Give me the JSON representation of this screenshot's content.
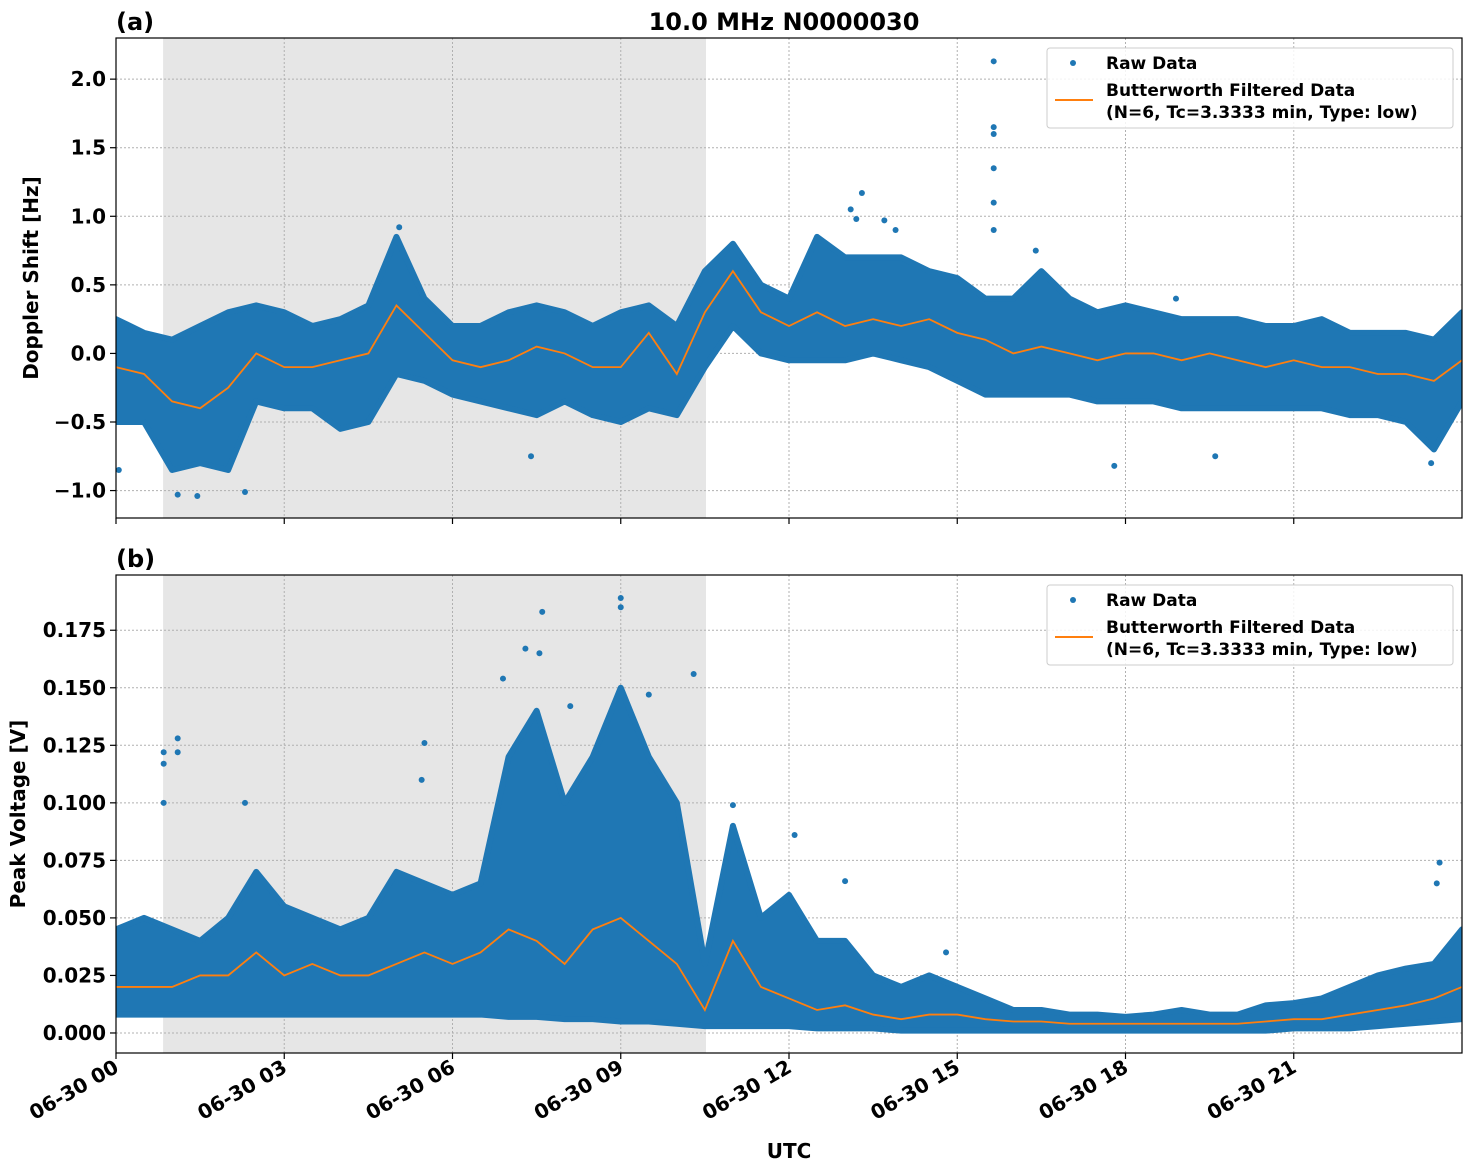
{
  "figure_title": "10.0 MHz N0000030",
  "xlabel": "UTC",
  "shaded_interval_hours": [
    0.84,
    10.52
  ],
  "colors": {
    "raw": "#1f77b4",
    "filtered": "#ff7f0e",
    "shade": "#e6e6e6",
    "grid": "#b0b0b0"
  },
  "chart_data": [
    {
      "type": "scatter",
      "panel_label": "(a)",
      "title": "10.0 MHz N0000030",
      "ylabel": "Doppler Shift [Hz]",
      "xlabel": "",
      "xlim": [
        0,
        24
      ],
      "ylim": [
        -1.2,
        2.3
      ],
      "yticks": [
        -1.0,
        -0.5,
        0.0,
        0.5,
        1.0,
        1.5,
        2.0
      ],
      "ytick_labels": [
        "−1.0",
        "−0.5",
        "0.0",
        "0.5",
        "1.0",
        "1.5",
        "2.0"
      ],
      "grid": true,
      "legend": {
        "placement": "top-right",
        "entries": [
          "Raw Data",
          "Butterworth Filtered Data",
          "(N=6, Tc=3.3333 min, Type: low)"
        ]
      },
      "x_hours": [
        0,
        0.5,
        1,
        1.5,
        2,
        2.5,
        3,
        3.5,
        4,
        4.5,
        5,
        5.5,
        6,
        6.5,
        7,
        7.5,
        8,
        8.5,
        9,
        9.5,
        10,
        10.5,
        11,
        11.5,
        12,
        12.5,
        13,
        13.5,
        14,
        14.5,
        15,
        15.5,
        16,
        16.5,
        17,
        17.5,
        18,
        18.5,
        19,
        19.5,
        20,
        20.5,
        21,
        21.5,
        22,
        22.5,
        23,
        23.5,
        24
      ],
      "series": [
        {
          "name": "Butterworth Filtered Data",
          "kind": "line",
          "values": [
            -0.1,
            -0.15,
            -0.35,
            -0.4,
            -0.25,
            0.0,
            -0.1,
            -0.1,
            -0.05,
            0.0,
            0.35,
            0.15,
            -0.05,
            -0.1,
            -0.05,
            0.05,
            0.0,
            -0.1,
            -0.1,
            0.15,
            -0.15,
            0.3,
            0.6,
            0.3,
            0.2,
            0.3,
            0.2,
            0.25,
            0.2,
            0.25,
            0.15,
            0.1,
            0.0,
            0.05,
            0.0,
            -0.05,
            0.0,
            0.0,
            -0.05,
            0.0,
            -0.05,
            -0.1,
            -0.05,
            -0.1,
            -0.1,
            -0.15,
            -0.15,
            -0.2,
            -0.05
          ]
        },
        {
          "name": "Raw Data",
          "kind": "scatter-envelope",
          "upper": [
            0.25,
            0.15,
            0.1,
            0.2,
            0.3,
            0.35,
            0.3,
            0.2,
            0.25,
            0.35,
            0.85,
            0.4,
            0.2,
            0.2,
            0.3,
            0.35,
            0.3,
            0.2,
            0.3,
            0.35,
            0.2,
            0.6,
            0.8,
            0.5,
            0.4,
            0.85,
            0.7,
            0.7,
            0.7,
            0.6,
            0.55,
            0.4,
            0.4,
            0.6,
            0.4,
            0.3,
            0.35,
            0.3,
            0.25,
            0.25,
            0.25,
            0.2,
            0.2,
            0.25,
            0.15,
            0.15,
            0.15,
            0.1,
            0.3
          ],
          "lower": [
            -0.5,
            -0.5,
            -0.85,
            -0.8,
            -0.85,
            -0.35,
            -0.4,
            -0.4,
            -0.55,
            -0.5,
            -0.15,
            -0.2,
            -0.3,
            -0.35,
            -0.4,
            -0.45,
            -0.35,
            -0.45,
            -0.5,
            -0.4,
            -0.45,
            -0.1,
            0.2,
            0.0,
            -0.05,
            -0.05,
            -0.05,
            0.0,
            -0.05,
            -0.1,
            -0.2,
            -0.3,
            -0.3,
            -0.3,
            -0.3,
            -0.35,
            -0.35,
            -0.35,
            -0.4,
            -0.4,
            -0.4,
            -0.4,
            -0.4,
            -0.4,
            -0.45,
            -0.45,
            -0.5,
            -0.7,
            -0.35
          ],
          "outliers": [
            [
              15.65,
              2.13
            ],
            [
              15.65,
              1.65
            ],
            [
              15.65,
              1.6
            ],
            [
              15.65,
              1.35
            ],
            [
              15.65,
              1.1
            ],
            [
              15.65,
              0.9
            ],
            [
              13.3,
              1.17
            ],
            [
              13.1,
              1.05
            ],
            [
              13.2,
              0.98
            ],
            [
              13.7,
              0.97
            ],
            [
              13.9,
              0.9
            ],
            [
              5.05,
              0.92
            ],
            [
              17.8,
              -0.82
            ],
            [
              1.1,
              -1.03
            ],
            [
              1.45,
              -1.04
            ],
            [
              2.3,
              -1.01
            ],
            [
              0.05,
              -0.85
            ],
            [
              19.6,
              -0.75
            ],
            [
              23.45,
              -0.8
            ],
            [
              16.4,
              0.75
            ],
            [
              18.9,
              0.4
            ],
            [
              7.4,
              -0.75
            ]
          ]
        }
      ]
    },
    {
      "type": "scatter",
      "panel_label": "(b)",
      "title": "",
      "ylabel": "Peak Voltage [V]",
      "xlabel": "UTC",
      "xlim": [
        0,
        24
      ],
      "ylim": [
        -0.0087,
        0.199
      ],
      "yticks": [
        0.0,
        0.025,
        0.05,
        0.075,
        0.1,
        0.125,
        0.15,
        0.175
      ],
      "ytick_labels": [
        "0.000",
        "0.025",
        "0.050",
        "0.075",
        "0.100",
        "0.125",
        "0.150",
        "0.175"
      ],
      "xticks": [
        0,
        3,
        6,
        9,
        12,
        15,
        18,
        21
      ],
      "xtick_labels": [
        "06-30 00",
        "06-30 03",
        "06-30 06",
        "06-30 09",
        "06-30 12",
        "06-30 15",
        "06-30 18",
        "06-30 21"
      ],
      "grid": true,
      "legend": {
        "placement": "top-right",
        "entries": [
          "Raw Data",
          "Butterworth Filtered Data",
          "(N=6, Tc=3.3333 min, Type: low)"
        ]
      },
      "x_hours": [
        0,
        0.5,
        1,
        1.5,
        2,
        2.5,
        3,
        3.5,
        4,
        4.5,
        5,
        5.5,
        6,
        6.5,
        7,
        7.5,
        8,
        8.5,
        9,
        9.5,
        10,
        10.5,
        11,
        11.5,
        12,
        12.5,
        13,
        13.5,
        14,
        14.5,
        15,
        15.5,
        16,
        16.5,
        17,
        17.5,
        18,
        18.5,
        19,
        19.5,
        20,
        20.5,
        21,
        21.5,
        22,
        22.5,
        23,
        23.5,
        24
      ],
      "series": [
        {
          "name": "Butterworth Filtered Data",
          "kind": "line",
          "values": [
            0.02,
            0.02,
            0.02,
            0.025,
            0.025,
            0.035,
            0.025,
            0.03,
            0.025,
            0.025,
            0.03,
            0.035,
            0.03,
            0.035,
            0.045,
            0.04,
            0.03,
            0.045,
            0.05,
            0.04,
            0.03,
            0.01,
            0.04,
            0.02,
            0.015,
            0.01,
            0.012,
            0.008,
            0.006,
            0.008,
            0.008,
            0.006,
            0.005,
            0.005,
            0.004,
            0.004,
            0.004,
            0.004,
            0.004,
            0.004,
            0.004,
            0.005,
            0.006,
            0.006,
            0.008,
            0.01,
            0.012,
            0.015,
            0.02
          ]
        },
        {
          "name": "Raw Data",
          "kind": "scatter-envelope",
          "upper": [
            0.045,
            0.05,
            0.045,
            0.04,
            0.05,
            0.07,
            0.055,
            0.05,
            0.045,
            0.05,
            0.07,
            0.065,
            0.06,
            0.065,
            0.12,
            0.14,
            0.1,
            0.12,
            0.15,
            0.12,
            0.1,
            0.03,
            0.09,
            0.05,
            0.06,
            0.04,
            0.04,
            0.025,
            0.02,
            0.025,
            0.02,
            0.015,
            0.01,
            0.01,
            0.008,
            0.008,
            0.007,
            0.008,
            0.01,
            0.008,
            0.008,
            0.012,
            0.013,
            0.015,
            0.02,
            0.025,
            0.028,
            0.03,
            0.045
          ],
          "lower": [
            0.008,
            0.008,
            0.008,
            0.008,
            0.008,
            0.008,
            0.008,
            0.008,
            0.008,
            0.008,
            0.008,
            0.008,
            0.008,
            0.008,
            0.007,
            0.007,
            0.006,
            0.006,
            0.005,
            0.005,
            0.004,
            0.003,
            0.003,
            0.003,
            0.003,
            0.002,
            0.002,
            0.002,
            0.001,
            0.001,
            0.001,
            0.001,
            0.001,
            0.001,
            0.001,
            0.001,
            0.001,
            0.001,
            0.001,
            0.001,
            0.001,
            0.001,
            0.002,
            0.002,
            0.002,
            0.003,
            0.004,
            0.005,
            0.006
          ],
          "outliers": [
            [
              0.85,
              0.122
            ],
            [
              0.85,
              0.117
            ],
            [
              0.85,
              0.1
            ],
            [
              1.1,
              0.128
            ],
            [
              1.1,
              0.122
            ],
            [
              7.6,
              0.183
            ],
            [
              7.55,
              0.165
            ],
            [
              9.0,
              0.189
            ],
            [
              9.0,
              0.185
            ],
            [
              8.1,
              0.142
            ],
            [
              7.3,
              0.167
            ],
            [
              10.3,
              0.156
            ],
            [
              5.5,
              0.126
            ],
            [
              5.45,
              0.11
            ],
            [
              2.3,
              0.1
            ],
            [
              6.9,
              0.154
            ],
            [
              9.5,
              0.147
            ],
            [
              11.0,
              0.099
            ],
            [
              12.1,
              0.086
            ],
            [
              13.0,
              0.066
            ],
            [
              23.6,
              0.074
            ],
            [
              23.55,
              0.065
            ],
            [
              14.8,
              0.035
            ]
          ]
        }
      ]
    }
  ]
}
